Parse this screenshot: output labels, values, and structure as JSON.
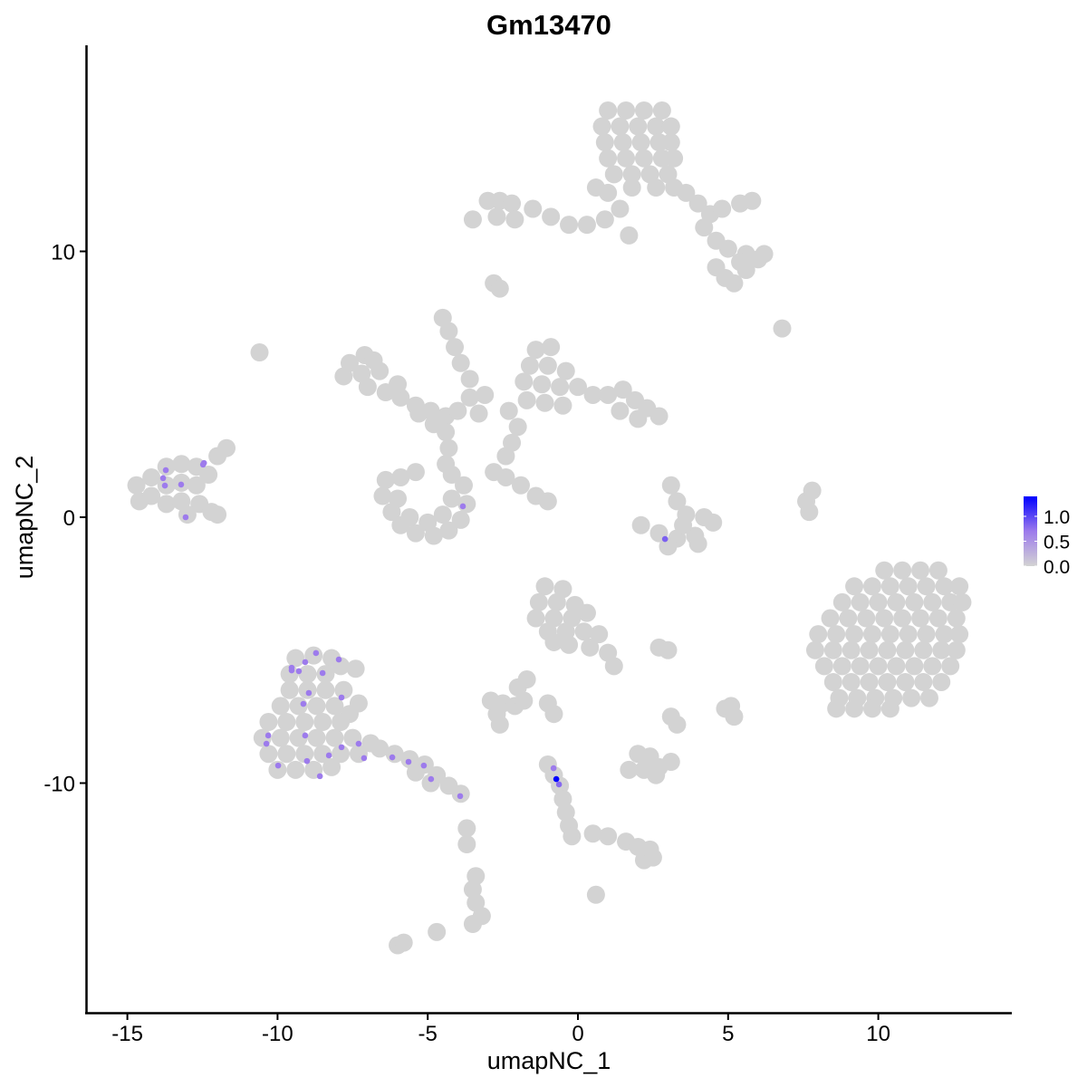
{
  "chart_data": {
    "type": "scatter",
    "title": "Gm13470",
    "xlabel": "umapNC_1",
    "ylabel": "umapNC_2",
    "xlim": [
      -16.5,
      14.3
    ],
    "ylim": [
      -18.4,
      17.9
    ],
    "xticks": [
      "-15",
      "-10",
      "-5",
      "0",
      "5",
      "10"
    ],
    "xtick_values": [
      -15,
      -10,
      -5,
      0,
      5,
      10
    ],
    "yticks": [
      "-10",
      "0",
      "10"
    ],
    "ytick_values": [
      -10,
      0,
      10
    ],
    "grid": false,
    "legend": {
      "position": "right",
      "type": "colorbar",
      "labels": [
        "1.0",
        "0.5",
        "0.0"
      ],
      "label_values": [
        1.0,
        0.5,
        0.0
      ],
      "range": [
        0,
        1.4
      ],
      "low_color": "#d3d3d3",
      "mid_color": "#9c7aec",
      "high_color": "#0000ff"
    },
    "zero_expression_cells": [
      [
        1.0,
        15.3
      ],
      [
        1.6,
        15.3
      ],
      [
        2.2,
        15.3
      ],
      [
        2.8,
        15.3
      ],
      [
        0.8,
        14.7
      ],
      [
        1.4,
        14.7
      ],
      [
        2.0,
        14.7
      ],
      [
        2.6,
        14.7
      ],
      [
        3.1,
        14.7
      ],
      [
        0.9,
        14.1
      ],
      [
        1.5,
        14.1
      ],
      [
        2.1,
        14.1
      ],
      [
        2.7,
        14.1
      ],
      [
        3.1,
        14.1
      ],
      [
        1.0,
        13.5
      ],
      [
        1.6,
        13.5
      ],
      [
        2.2,
        13.5
      ],
      [
        2.8,
        13.5
      ],
      [
        3.2,
        13.5
      ],
      [
        1.2,
        12.9
      ],
      [
        1.8,
        12.9
      ],
      [
        2.4,
        12.9
      ],
      [
        3.0,
        12.9
      ],
      [
        1.8,
        12.4
      ],
      [
        2.6,
        12.4
      ],
      [
        3.2,
        12.4
      ],
      [
        3.6,
        12.2
      ],
      [
        4.0,
        11.8
      ],
      [
        4.4,
        11.4
      ],
      [
        4.8,
        11.6
      ],
      [
        5.4,
        11.8
      ],
      [
        5.8,
        11.9
      ],
      [
        4.2,
        10.9
      ],
      [
        4.6,
        10.4
      ],
      [
        5.0,
        10.1
      ],
      [
        5.6,
        9.9
      ],
      [
        6.0,
        9.7
      ],
      [
        6.2,
        9.9
      ],
      [
        5.4,
        9.6
      ],
      [
        4.6,
        9.4
      ],
      [
        4.9,
        9.0
      ],
      [
        5.2,
        8.8
      ],
      [
        5.6,
        9.3
      ],
      [
        -3.0,
        11.9
      ],
      [
        -2.6,
        11.9
      ],
      [
        -2.2,
        11.8
      ],
      [
        -2.7,
        11.3
      ],
      [
        -2.1,
        11.2
      ],
      [
        -1.5,
        11.6
      ],
      [
        -0.9,
        11.3
      ],
      [
        -0.3,
        11.0
      ],
      [
        0.3,
        11.0
      ],
      [
        0.9,
        11.2
      ],
      [
        1.4,
        11.6
      ],
      [
        1.0,
        12.2
      ],
      [
        0.6,
        12.4
      ],
      [
        -3.5,
        11.2
      ],
      [
        -2.8,
        8.8
      ],
      [
        -2.6,
        8.6
      ],
      [
        6.8,
        7.1
      ],
      [
        1.7,
        10.6
      ],
      [
        -7.6,
        5.8
      ],
      [
        -7.1,
        6.1
      ],
      [
        -7.8,
        5.3
      ],
      [
        -7.2,
        5.4
      ],
      [
        -6.6,
        5.5
      ],
      [
        -7.0,
        4.9
      ],
      [
        -6.4,
        4.7
      ],
      [
        -5.9,
        4.5
      ],
      [
        -5.4,
        4.2
      ],
      [
        -4.9,
        4.0
      ],
      [
        -4.4,
        3.8
      ],
      [
        -4.8,
        3.5
      ],
      [
        -5.3,
        3.9
      ],
      [
        -6.0,
        5.0
      ],
      [
        -6.8,
        5.9
      ],
      [
        -4.0,
        4.0
      ],
      [
        -3.3,
        3.9
      ],
      [
        -3.6,
        4.5
      ],
      [
        -4.5,
        7.5
      ],
      [
        -4.3,
        7.0
      ],
      [
        -4.1,
        6.4
      ],
      [
        -3.9,
        5.8
      ],
      [
        -3.6,
        5.2
      ],
      [
        -3.1,
        4.6
      ],
      [
        -4.4,
        3.2
      ],
      [
        -4.3,
        2.6
      ],
      [
        -4.4,
        2.0
      ],
      [
        -10.6,
        6.2
      ],
      [
        -6.4,
        1.4
      ],
      [
        -6.5,
        0.8
      ],
      [
        -6.2,
        0.2
      ],
      [
        -5.9,
        -0.3
      ],
      [
        -5.4,
        -0.6
      ],
      [
        -4.8,
        -0.7
      ],
      [
        -4.3,
        -0.5
      ],
      [
        -3.9,
        -0.1
      ],
      [
        -3.7,
        0.5
      ],
      [
        -3.8,
        1.2
      ],
      [
        -4.2,
        1.6
      ],
      [
        -5.6,
        0.0
      ],
      [
        -5.0,
        -0.2
      ],
      [
        -4.5,
        0.1
      ],
      [
        -6.0,
        0.7
      ],
      [
        -4.2,
        0.7
      ],
      [
        -5.9,
        1.5
      ],
      [
        -5.4,
        1.7
      ],
      [
        -1.4,
        6.3
      ],
      [
        -0.9,
        6.4
      ],
      [
        -1.6,
        5.7
      ],
      [
        -1.0,
        5.7
      ],
      [
        -0.4,
        5.5
      ],
      [
        -1.8,
        5.1
      ],
      [
        -1.2,
        5.0
      ],
      [
        -0.6,
        4.9
      ],
      [
        0.0,
        4.9
      ],
      [
        -1.7,
        4.4
      ],
      [
        -1.1,
        4.3
      ],
      [
        -0.5,
        4.2
      ],
      [
        0.5,
        4.6
      ],
      [
        1.0,
        4.6
      ],
      [
        1.5,
        4.8
      ],
      [
        1.9,
        4.4
      ],
      [
        2.3,
        4.1
      ],
      [
        2.7,
        3.8
      ],
      [
        2.0,
        3.7
      ],
      [
        1.4,
        4.0
      ],
      [
        -2.3,
        4.0
      ],
      [
        -2.0,
        3.4
      ],
      [
        -2.2,
        2.8
      ],
      [
        -2.4,
        2.3
      ],
      [
        -2.8,
        1.7
      ],
      [
        -2.4,
        1.5
      ],
      [
        -1.9,
        1.2
      ],
      [
        -1.4,
        0.8
      ],
      [
        -1.0,
        0.6
      ],
      [
        3.1,
        1.2
      ],
      [
        3.3,
        0.6
      ],
      [
        3.6,
        0.1
      ],
      [
        4.2,
        0.0
      ],
      [
        4.5,
        -0.2
      ],
      [
        3.9,
        -0.7
      ],
      [
        3.3,
        -0.8
      ],
      [
        2.7,
        -0.6
      ],
      [
        2.1,
        -0.3
      ],
      [
        3.0,
        -1.1
      ],
      [
        4.0,
        -1.0
      ],
      [
        3.5,
        -0.3
      ],
      [
        7.6,
        0.6
      ],
      [
        7.8,
        1.0
      ],
      [
        7.7,
        0.2
      ],
      [
        -14.7,
        1.2
      ],
      [
        -14.6,
        0.6
      ],
      [
        -14.2,
        1.5
      ],
      [
        -14.2,
        0.8
      ],
      [
        -13.7,
        1.9
      ],
      [
        -13.7,
        1.2
      ],
      [
        -13.7,
        0.5
      ],
      [
        -13.2,
        2.0
      ],
      [
        -13.2,
        1.3
      ],
      [
        -13.2,
        0.6
      ],
      [
        -12.7,
        1.9
      ],
      [
        -12.7,
        1.2
      ],
      [
        -12.6,
        0.5
      ],
      [
        -12.2,
        0.2
      ],
      [
        -12.3,
        1.6
      ],
      [
        -12.0,
        2.3
      ],
      [
        -11.7,
        2.6
      ],
      [
        -12.0,
        0.1
      ],
      [
        -13.0,
        0.1
      ],
      [
        10.2,
        -2.0
      ],
      [
        10.8,
        -2.0
      ],
      [
        11.4,
        -2.0
      ],
      [
        12.0,
        -2.0
      ],
      [
        9.2,
        -2.6
      ],
      [
        9.8,
        -2.6
      ],
      [
        10.4,
        -2.6
      ],
      [
        11.0,
        -2.6
      ],
      [
        11.6,
        -2.6
      ],
      [
        12.2,
        -2.6
      ],
      [
        12.7,
        -2.6
      ],
      [
        8.8,
        -3.2
      ],
      [
        9.4,
        -3.2
      ],
      [
        10.0,
        -3.2
      ],
      [
        10.6,
        -3.2
      ],
      [
        11.2,
        -3.2
      ],
      [
        11.8,
        -3.2
      ],
      [
        12.4,
        -3.2
      ],
      [
        12.8,
        -3.2
      ],
      [
        8.4,
        -3.8
      ],
      [
        9.0,
        -3.8
      ],
      [
        9.6,
        -3.8
      ],
      [
        10.2,
        -3.8
      ],
      [
        10.8,
        -3.8
      ],
      [
        11.4,
        -3.8
      ],
      [
        12.0,
        -3.8
      ],
      [
        12.6,
        -3.8
      ],
      [
        8.0,
        -4.4
      ],
      [
        8.6,
        -4.4
      ],
      [
        9.2,
        -4.4
      ],
      [
        9.8,
        -4.4
      ],
      [
        10.4,
        -4.4
      ],
      [
        11.0,
        -4.4
      ],
      [
        11.6,
        -4.4
      ],
      [
        12.2,
        -4.4
      ],
      [
        12.7,
        -4.4
      ],
      [
        7.9,
        -5.0
      ],
      [
        8.5,
        -5.0
      ],
      [
        9.1,
        -5.0
      ],
      [
        9.7,
        -5.0
      ],
      [
        10.3,
        -5.0
      ],
      [
        10.9,
        -5.0
      ],
      [
        11.5,
        -5.0
      ],
      [
        12.1,
        -5.0
      ],
      [
        12.6,
        -5.0
      ],
      [
        8.2,
        -5.6
      ],
      [
        8.8,
        -5.6
      ],
      [
        9.4,
        -5.6
      ],
      [
        10.0,
        -5.6
      ],
      [
        10.6,
        -5.6
      ],
      [
        11.2,
        -5.6
      ],
      [
        11.8,
        -5.6
      ],
      [
        12.4,
        -5.6
      ],
      [
        8.5,
        -6.2
      ],
      [
        9.1,
        -6.2
      ],
      [
        9.7,
        -6.2
      ],
      [
        10.3,
        -6.2
      ],
      [
        10.9,
        -6.2
      ],
      [
        11.5,
        -6.2
      ],
      [
        12.1,
        -6.2
      ],
      [
        8.7,
        -6.8
      ],
      [
        9.3,
        -6.8
      ],
      [
        9.9,
        -6.8
      ],
      [
        10.5,
        -6.8
      ],
      [
        11.1,
        -6.8
      ],
      [
        11.7,
        -6.8
      ],
      [
        8.6,
        -7.2
      ],
      [
        9.2,
        -7.2
      ],
      [
        9.8,
        -7.2
      ],
      [
        10.4,
        -7.2
      ],
      [
        -9.4,
        -5.3
      ],
      [
        -8.8,
        -5.2
      ],
      [
        -8.2,
        -5.3
      ],
      [
        -9.6,
        -5.9
      ],
      [
        -9.0,
        -5.9
      ],
      [
        -8.4,
        -5.9
      ],
      [
        -7.9,
        -5.6
      ],
      [
        -9.6,
        -6.5
      ],
      [
        -9.0,
        -6.5
      ],
      [
        -8.4,
        -6.5
      ],
      [
        -7.8,
        -6.5
      ],
      [
        -9.9,
        -7.1
      ],
      [
        -9.3,
        -7.1
      ],
      [
        -8.7,
        -7.1
      ],
      [
        -8.1,
        -7.1
      ],
      [
        -7.6,
        -7.4
      ],
      [
        -10.3,
        -7.7
      ],
      [
        -9.7,
        -7.7
      ],
      [
        -9.1,
        -7.7
      ],
      [
        -8.5,
        -7.7
      ],
      [
        -7.9,
        -7.7
      ],
      [
        -10.5,
        -8.3
      ],
      [
        -9.9,
        -8.3
      ],
      [
        -9.3,
        -8.3
      ],
      [
        -8.7,
        -8.3
      ],
      [
        -8.1,
        -8.3
      ],
      [
        -7.5,
        -8.3
      ],
      [
        -6.9,
        -8.5
      ],
      [
        -10.3,
        -8.9
      ],
      [
        -9.7,
        -8.9
      ],
      [
        -9.1,
        -8.9
      ],
      [
        -8.5,
        -8.9
      ],
      [
        -7.9,
        -8.9
      ],
      [
        -7.3,
        -8.9
      ],
      [
        -10.0,
        -9.5
      ],
      [
        -9.4,
        -9.5
      ],
      [
        -8.8,
        -9.5
      ],
      [
        -8.2,
        -9.4
      ],
      [
        -6.6,
        -8.7
      ],
      [
        -6.1,
        -8.9
      ],
      [
        -5.6,
        -9.1
      ],
      [
        -5.1,
        -9.3
      ],
      [
        -4.7,
        -9.7
      ],
      [
        -4.3,
        -10.1
      ],
      [
        -3.9,
        -10.4
      ],
      [
        -5.4,
        -9.6
      ],
      [
        -4.9,
        -10.0
      ],
      [
        -7.3,
        -7.0
      ],
      [
        -7.4,
        -5.7
      ],
      [
        -1.1,
        -2.6
      ],
      [
        -0.5,
        -2.7
      ],
      [
        -1.3,
        -3.2
      ],
      [
        -0.7,
        -3.2
      ],
      [
        -0.1,
        -3.3
      ],
      [
        -1.4,
        -3.8
      ],
      [
        -0.8,
        -3.8
      ],
      [
        -0.2,
        -3.8
      ],
      [
        0.3,
        -3.6
      ],
      [
        -1.0,
        -4.3
      ],
      [
        -0.4,
        -4.3
      ],
      [
        0.2,
        -4.3
      ],
      [
        0.7,
        -4.4
      ],
      [
        -0.3,
        -4.8
      ],
      [
        0.4,
        -4.9
      ],
      [
        1.0,
        -5.1
      ],
      [
        1.2,
        -5.6
      ],
      [
        -0.8,
        -4.7
      ],
      [
        -2.9,
        -6.9
      ],
      [
        -2.5,
        -7.0
      ],
      [
        -2.1,
        -7.1
      ],
      [
        -1.8,
        -6.9
      ],
      [
        -2.7,
        -7.4
      ],
      [
        -2.0,
        -6.4
      ],
      [
        -1.7,
        -6.1
      ],
      [
        -2.6,
        -7.8
      ],
      [
        -1.0,
        -7.0
      ],
      [
        -0.8,
        -7.4
      ],
      [
        2.7,
        -4.9
      ],
      [
        3.0,
        -5.0
      ],
      [
        4.9,
        -7.2
      ],
      [
        5.2,
        -7.5
      ],
      [
        5.1,
        -7.1
      ],
      [
        3.3,
        -7.8
      ],
      [
        3.1,
        -7.5
      ],
      [
        1.7,
        -9.5
      ],
      [
        2.2,
        -9.5
      ],
      [
        2.7,
        -9.4
      ],
      [
        3.1,
        -9.2
      ],
      [
        2.4,
        -9.0
      ],
      [
        2.0,
        -8.9
      ],
      [
        2.6,
        -9.7
      ],
      [
        -1.0,
        -9.3
      ],
      [
        -0.8,
        -9.7
      ],
      [
        -0.6,
        -10.1
      ],
      [
        -0.5,
        -10.6
      ],
      [
        -0.4,
        -11.1
      ],
      [
        -0.3,
        -11.6
      ],
      [
        -0.2,
        -12.0
      ],
      [
        0.5,
        -11.9
      ],
      [
        1.0,
        -12.0
      ],
      [
        1.6,
        -12.2
      ],
      [
        2.0,
        -12.4
      ],
      [
        2.4,
        -12.5
      ],
      [
        2.2,
        -12.9
      ],
      [
        2.5,
        -12.8
      ],
      [
        -3.4,
        -13.5
      ],
      [
        -3.5,
        -14.0
      ],
      [
        -3.4,
        -14.5
      ],
      [
        -3.2,
        -15.0
      ],
      [
        -3.5,
        -15.3
      ],
      [
        -3.7,
        -12.3
      ],
      [
        -3.7,
        -11.7
      ],
      [
        0.6,
        -14.2
      ],
      [
        -6.0,
        -16.1
      ],
      [
        -5.8,
        -16.0
      ],
      [
        -4.7,
        -15.6
      ]
    ],
    "expressing_cells": [
      {
        "x": -8.72,
        "y": -5.11,
        "value": 0.69
      },
      {
        "x": -7.96,
        "y": -5.35,
        "value": 0.69
      },
      {
        "x": -9.08,
        "y": -5.45,
        "value": 0.69
      },
      {
        "x": -9.53,
        "y": -5.66,
        "value": 0.69
      },
      {
        "x": -9.53,
        "y": -5.76,
        "value": 0.69
      },
      {
        "x": -9.29,
        "y": -5.79,
        "value": 0.69
      },
      {
        "x": -8.5,
        "y": -5.86,
        "value": 0.69
      },
      {
        "x": -8.96,
        "y": -6.61,
        "value": 0.69
      },
      {
        "x": -7.87,
        "y": -6.78,
        "value": 0.69
      },
      {
        "x": -9.14,
        "y": -7.02,
        "value": 0.69
      },
      {
        "x": -10.31,
        "y": -8.21,
        "value": 0.69
      },
      {
        "x": -10.37,
        "y": -8.52,
        "value": 0.69
      },
      {
        "x": -9.08,
        "y": -8.21,
        "value": 0.69
      },
      {
        "x": -7.87,
        "y": -8.65,
        "value": 0.69
      },
      {
        "x": -7.3,
        "y": -8.52,
        "value": 0.69
      },
      {
        "x": -8.29,
        "y": -8.96,
        "value": 0.69
      },
      {
        "x": -9.02,
        "y": -9.17,
        "value": 0.69
      },
      {
        "x": -7.12,
        "y": -9.06,
        "value": 0.69
      },
      {
        "x": -9.98,
        "y": -9.34,
        "value": 0.69
      },
      {
        "x": -8.59,
        "y": -9.74,
        "value": 0.69
      },
      {
        "x": -6.18,
        "y": -9.03,
        "value": 0.69
      },
      {
        "x": -5.64,
        "y": -9.2,
        "value": 0.69
      },
      {
        "x": -5.13,
        "y": -9.34,
        "value": 0.69
      },
      {
        "x": -4.89,
        "y": -9.85,
        "value": 0.69
      },
      {
        "x": -3.92,
        "y": -10.49,
        "value": 0.69
      },
      {
        "x": -12.45,
        "y": 2.04,
        "value": 0.69
      },
      {
        "x": -12.48,
        "y": 1.98,
        "value": 0.69
      },
      {
        "x": -13.72,
        "y": 1.77,
        "value": 0.69
      },
      {
        "x": -13.81,
        "y": 1.47,
        "value": 0.69
      },
      {
        "x": -13.75,
        "y": 1.19,
        "value": 0.69
      },
      {
        "x": -13.21,
        "y": 1.23,
        "value": 0.69
      },
      {
        "x": -13.06,
        "y": 0.0,
        "value": 0.69
      },
      {
        "x": -3.83,
        "y": 0.41,
        "value": 0.69
      },
      {
        "x": 2.9,
        "y": -0.82,
        "value": 0.85
      },
      {
        "x": -0.81,
        "y": -9.44,
        "value": 0.69
      },
      {
        "x": -0.63,
        "y": -10.05,
        "value": 0.8
      },
      {
        "x": -0.72,
        "y": -9.85,
        "value": 1.4
      }
    ]
  }
}
